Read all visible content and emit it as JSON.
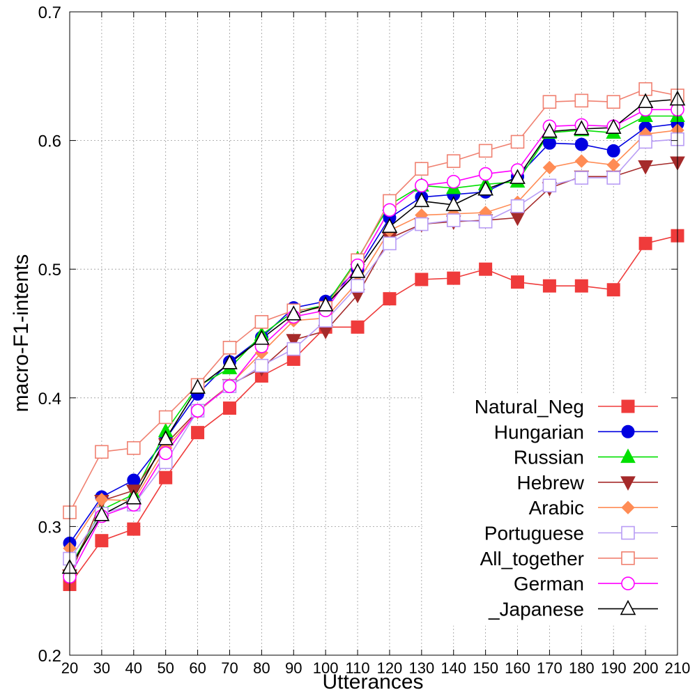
{
  "chart_data": {
    "type": "line",
    "xlabel": "Utterances",
    "ylabel": "macro-F1-intents",
    "x": [
      20,
      30,
      40,
      50,
      60,
      70,
      80,
      90,
      100,
      110,
      120,
      130,
      140,
      150,
      160,
      170,
      180,
      190,
      200,
      210
    ],
    "xticks": [
      "20",
      "30",
      "40",
      "50",
      "60",
      "70",
      "80",
      "90",
      "100",
      "110",
      "120",
      "130",
      "140",
      "150",
      "160",
      "170",
      "180",
      "190",
      "200",
      "210"
    ],
    "xlim": [
      20,
      210
    ],
    "ylim": [
      0.2,
      0.7
    ],
    "yticks": [
      "0.2",
      "0.3",
      "0.4",
      "0.5",
      "0.6",
      "0.7"
    ],
    "grid": true,
    "legend_position": "lower-right",
    "series": [
      {
        "name": "Natural_Neg",
        "color": "#ef3b3b",
        "marker": "square-filled",
        "values": [
          0.255,
          0.289,
          0.298,
          0.338,
          0.373,
          0.392,
          0.417,
          0.43,
          0.455,
          0.455,
          0.477,
          0.492,
          0.493,
          0.5,
          0.49,
          0.487,
          0.487,
          0.484,
          0.52,
          0.526
        ]
      },
      {
        "name": "Hungarian",
        "color": "#0000e0",
        "marker": "circle-filled",
        "values": [
          0.287,
          0.323,
          0.336,
          0.368,
          0.403,
          0.428,
          0.447,
          0.47,
          0.475,
          0.5,
          0.54,
          0.556,
          0.558,
          0.56,
          0.572,
          0.598,
          0.597,
          0.592,
          0.61,
          0.613
        ]
      },
      {
        "name": "Russian",
        "color": "#00e000",
        "marker": "triangle-filled",
        "values": [
          0.268,
          0.313,
          0.325,
          0.374,
          0.409,
          0.423,
          0.449,
          0.467,
          0.472,
          0.508,
          0.55,
          0.565,
          0.563,
          0.566,
          0.568,
          0.606,
          0.608,
          0.606,
          0.619,
          0.619
        ]
      },
      {
        "name": "Hebrew",
        "color": "#a52a2a",
        "marker": "triangle-down-filled",
        "values": [
          0.262,
          0.32,
          0.328,
          0.364,
          0.39,
          0.41,
          0.423,
          0.445,
          0.452,
          0.48,
          0.524,
          0.535,
          0.537,
          0.538,
          0.54,
          0.563,
          0.572,
          0.572,
          0.58,
          0.583
        ]
      },
      {
        "name": "Arabic",
        "color": "#ff8c55",
        "marker": "diamond-filled",
        "values": [
          0.283,
          0.321,
          0.32,
          0.361,
          0.389,
          0.41,
          0.435,
          0.46,
          0.462,
          0.49,
          0.53,
          0.542,
          0.543,
          0.544,
          0.552,
          0.579,
          0.584,
          0.581,
          0.605,
          0.608
        ]
      },
      {
        "name": "Portuguese",
        "color": "#b89cf5",
        "marker": "square-open",
        "values": [
          0.275,
          0.31,
          0.317,
          0.35,
          0.39,
          0.409,
          0.425,
          0.438,
          0.46,
          0.487,
          0.52,
          0.535,
          0.538,
          0.537,
          0.549,
          0.565,
          0.571,
          0.571,
          0.599,
          0.601
        ]
      },
      {
        "name": "All_together",
        "color": "#f08070",
        "marker": "square-open",
        "values": [
          0.311,
          0.358,
          0.361,
          0.385,
          0.41,
          0.439,
          0.459,
          0.468,
          0.47,
          0.507,
          0.553,
          0.578,
          0.584,
          0.592,
          0.599,
          0.63,
          0.631,
          0.63,
          0.64,
          0.635
        ]
      },
      {
        "name": "German",
        "color": "#ff00ff",
        "marker": "circle-open",
        "values": [
          0.261,
          0.308,
          0.317,
          0.357,
          0.39,
          0.409,
          0.44,
          0.463,
          0.468,
          0.503,
          0.546,
          0.565,
          0.568,
          0.574,
          0.577,
          0.611,
          0.612,
          0.611,
          0.624,
          0.624
        ]
      },
      {
        "name": "_Japanese",
        "color": "#000000",
        "marker": "triangle-open",
        "values": [
          0.268,
          0.309,
          0.322,
          0.368,
          0.408,
          0.427,
          0.446,
          0.465,
          0.472,
          0.498,
          0.533,
          0.553,
          0.55,
          0.562,
          0.571,
          0.607,
          0.609,
          0.61,
          0.63,
          0.632
        ]
      }
    ]
  }
}
